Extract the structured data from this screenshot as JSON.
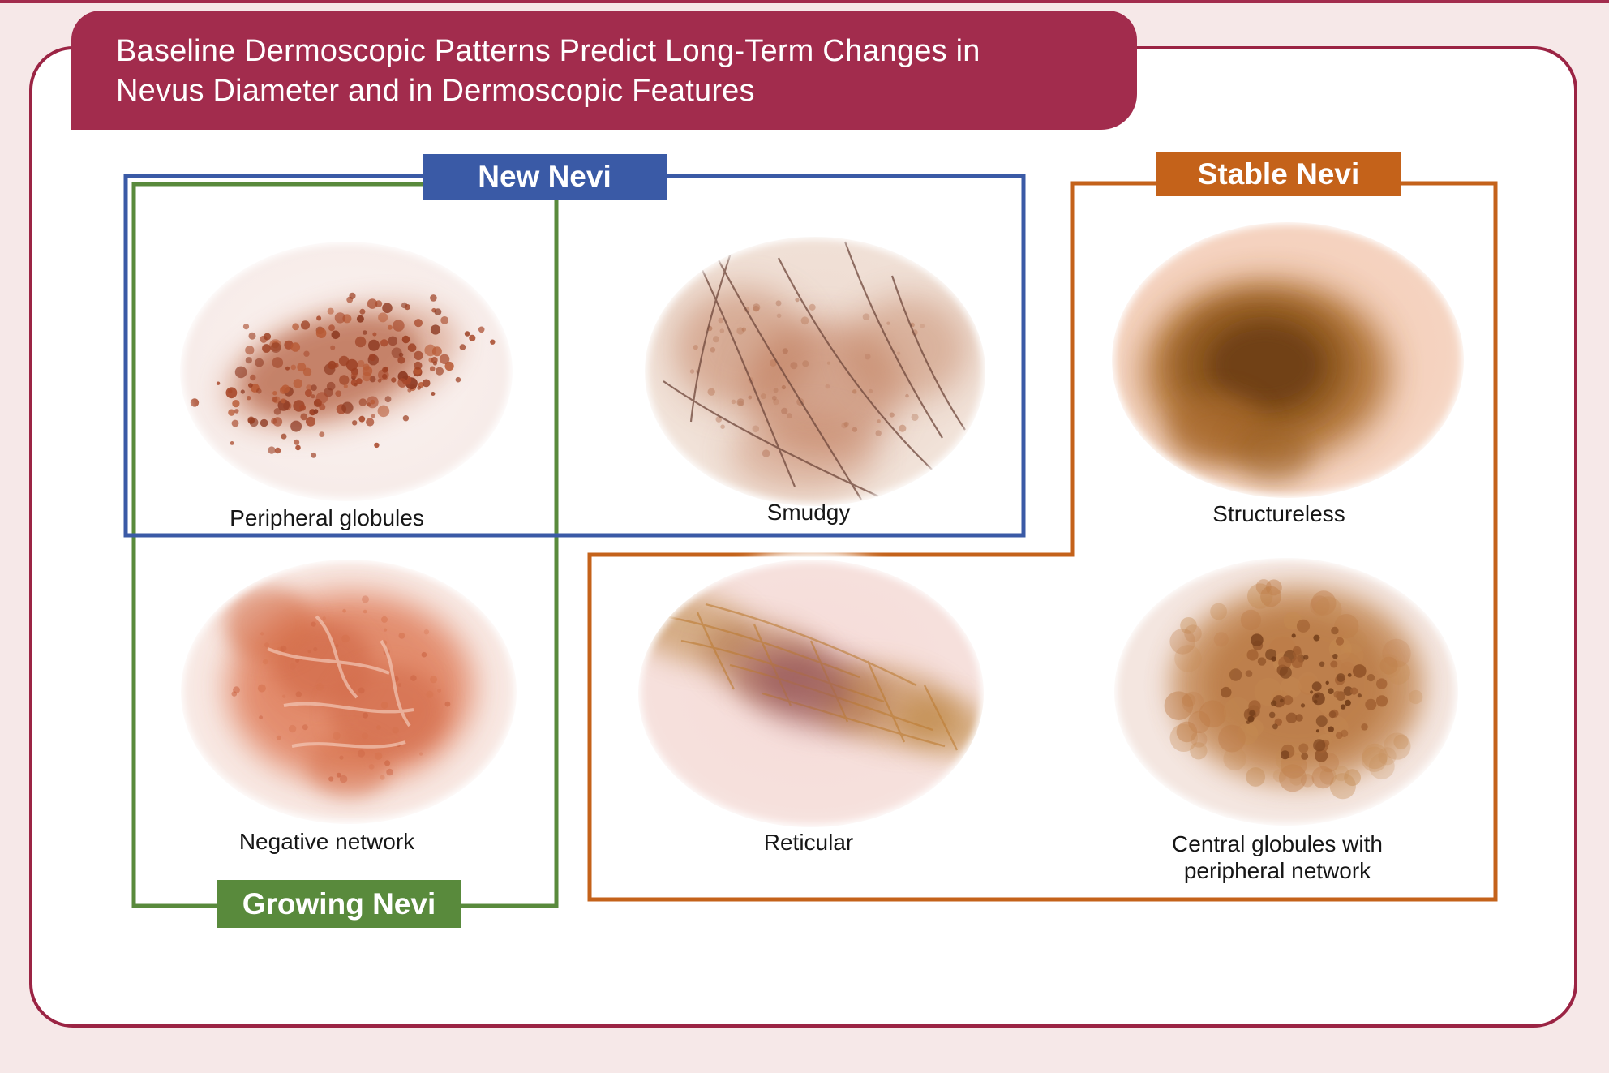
{
  "title": {
    "line1": "Baseline Dermoscopic Patterns Predict Long-Term Changes in",
    "line2": "Nevus Diameter and in Dermoscopic Features"
  },
  "groups": {
    "new_nevi": {
      "label": "New Nevi",
      "color": "#3a5aa6"
    },
    "stable_nevi": {
      "label": "Stable Nevi",
      "color": "#c4621a"
    },
    "growing_nevi": {
      "label": "Growing Nevi",
      "color": "#598a3c"
    }
  },
  "patterns": {
    "peripheral_globules": {
      "caption": "Peripheral globules"
    },
    "smudgy": {
      "caption": "Smudgy"
    },
    "structureless": {
      "caption": "Structureless"
    },
    "negative_network": {
      "caption": "Negative network"
    },
    "reticular": {
      "caption": "Reticular"
    },
    "central_globules": {
      "caption_line1": "Central globules with",
      "caption_line2": "peripheral network"
    }
  },
  "colors": {
    "banner": "#a22c4d",
    "panel_border": "#9b2444",
    "page_background": "#f6e8e8",
    "new_nevi_blue": "#3a5aa6",
    "stable_nevi_orange": "#c4621a",
    "growing_nevi_green": "#598a3c",
    "caption_text": "#161616"
  }
}
